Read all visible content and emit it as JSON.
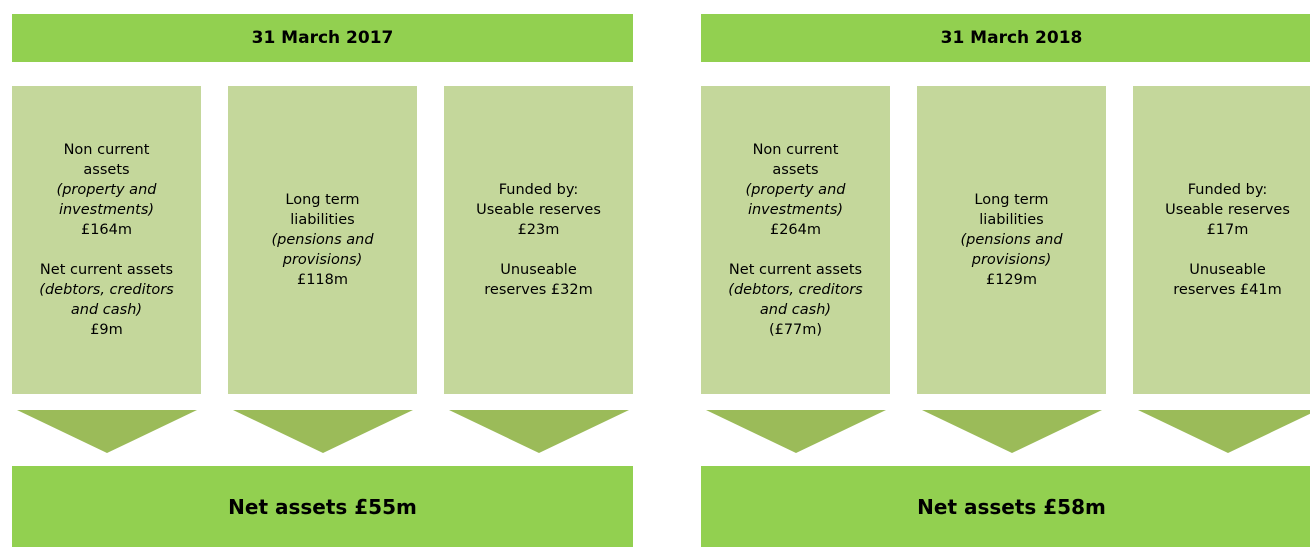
{
  "panels": [
    {
      "title": "31 March 2017",
      "boxes": [
        {
          "groups": [
            [
              "Non current",
              "assets",
              {
                "text": "(property and",
                "italic": true
              },
              {
                "text": "investments)",
                "italic": true
              },
              "£164m"
            ],
            [
              "Net current assets",
              {
                "text": "(debtors, creditors",
                "italic": true
              },
              {
                "text": "and cash)",
                "italic": true
              },
              "£9m"
            ]
          ]
        },
        {
          "groups": [
            [
              "Long term",
              "liabilities",
              {
                "text": "(pensions and",
                "italic": true
              },
              {
                "text": "provisions)",
                "italic": true
              },
              "£118m"
            ]
          ]
        },
        {
          "groups": [
            [
              "Funded by:",
              "Useable reserves",
              "£23m"
            ],
            [
              "Unuseable",
              "reserves £32m"
            ]
          ]
        }
      ],
      "footer": "Net assets £55m"
    },
    {
      "title": "31 March 2018",
      "boxes": [
        {
          "groups": [
            [
              "Non current",
              "assets",
              {
                "text": "(property and",
                "italic": true
              },
              {
                "text": "investments)",
                "italic": true
              },
              "£264m"
            ],
            [
              "Net current assets",
              {
                "text": "(debtors, creditors",
                "italic": true
              },
              {
                "text": "and cash)",
                "italic": true
              },
              "(£77m)"
            ]
          ]
        },
        {
          "groups": [
            [
              "Long term",
              "liabilities",
              {
                "text": "(pensions and",
                "italic": true
              },
              {
                "text": "provisions)",
                "italic": true
              },
              "£129m"
            ]
          ]
        },
        {
          "groups": [
            [
              "Funded by:",
              "Useable reserves",
              "£17m"
            ],
            [
              "Unuseable",
              "reserves £41m"
            ]
          ]
        }
      ],
      "footer": "Net assets £58m"
    }
  ]
}
